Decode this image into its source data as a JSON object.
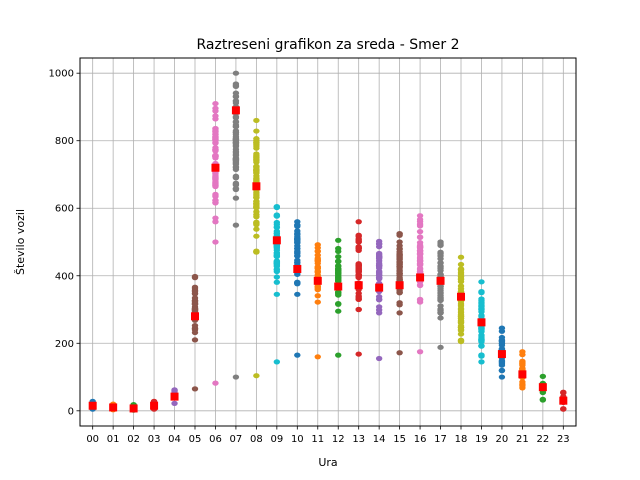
{
  "chart_data": {
    "type": "scatter",
    "title": "Raztreseni grafikon za sreda - Smer 2",
    "xlabel": "Ura",
    "ylabel": "Število vozil",
    "ylim": [
      -45,
      1045
    ],
    "yticks": [
      0,
      200,
      400,
      600,
      800,
      1000
    ],
    "grid": true,
    "mean_marker_color": "#ff0000",
    "categories": [
      "00",
      "01",
      "02",
      "03",
      "04",
      "05",
      "06",
      "07",
      "08",
      "09",
      "10",
      "11",
      "12",
      "13",
      "14",
      "15",
      "16",
      "17",
      "18",
      "19",
      "20",
      "21",
      "22",
      "23"
    ],
    "series": [
      {
        "category": "00",
        "color": "#1f77b4",
        "min": 5,
        "max": 28,
        "outliers": [],
        "mean": 15
      },
      {
        "category": "01",
        "color": "#ff7f0e",
        "min": 3,
        "max": 20,
        "outliers": [],
        "mean": 10
      },
      {
        "category": "02",
        "color": "#2ca02c",
        "min": 2,
        "max": 18,
        "outliers": [],
        "mean": 7
      },
      {
        "category": "03",
        "color": "#d62728",
        "min": 5,
        "max": 28,
        "outliers": [],
        "mean": 15
      },
      {
        "category": "04",
        "color": "#9467bd",
        "min": 22,
        "max": 62,
        "outliers": [],
        "mean": 42
      },
      {
        "category": "05",
        "color": "#8c564b",
        "min": 210,
        "max": 398,
        "outliers": [
          65
        ],
        "mean": 280
      },
      {
        "category": "06",
        "color": "#e377c2",
        "min": 560,
        "max": 910,
        "outliers": [
          82,
          500
        ],
        "mean": 720
      },
      {
        "category": "07",
        "color": "#7f7f7f",
        "min": 630,
        "max": 1000,
        "outliers": [
          100,
          550
        ],
        "mean": 890
      },
      {
        "category": "08",
        "color": "#bcbd22",
        "min": 470,
        "max": 860,
        "outliers": [
          104
        ],
        "mean": 665
      },
      {
        "category": "09",
        "color": "#17becf",
        "min": 345,
        "max": 605,
        "outliers": [
          145
        ],
        "mean": 505
      },
      {
        "category": "10",
        "color": "#1f77b4",
        "min": 345,
        "max": 560,
        "outliers": [
          165
        ],
        "mean": 420
      },
      {
        "category": "11",
        "color": "#ff7f0e",
        "min": 322,
        "max": 492,
        "outliers": [
          160
        ],
        "mean": 385
      },
      {
        "category": "12",
        "color": "#2ca02c",
        "min": 295,
        "max": 505,
        "outliers": [
          165
        ],
        "mean": 368
      },
      {
        "category": "13",
        "color": "#d62728",
        "min": 300,
        "max": 520,
        "outliers": [
          168,
          560
        ],
        "mean": 372
      },
      {
        "category": "14",
        "color": "#9467bd",
        "min": 290,
        "max": 502,
        "outliers": [
          155
        ],
        "mean": 365
      },
      {
        "category": "15",
        "color": "#8c564b",
        "min": 290,
        "max": 525,
        "outliers": [
          172
        ],
        "mean": 372
      },
      {
        "category": "16",
        "color": "#e377c2",
        "min": 322,
        "max": 578,
        "outliers": [
          175
        ],
        "mean": 395
      },
      {
        "category": "17",
        "color": "#7f7f7f",
        "min": 275,
        "max": 500,
        "outliers": [
          188
        ],
        "mean": 385
      },
      {
        "category": "18",
        "color": "#bcbd22",
        "min": 205,
        "max": 455,
        "outliers": [],
        "mean": 338
      },
      {
        "category": "19",
        "color": "#17becf",
        "min": 145,
        "max": 382,
        "outliers": [],
        "mean": 262
      },
      {
        "category": "20",
        "color": "#1f77b4",
        "min": 100,
        "max": 245,
        "outliers": [],
        "mean": 168
      },
      {
        "category": "21",
        "color": "#ff7f0e",
        "min": 68,
        "max": 175,
        "outliers": [],
        "mean": 108
      },
      {
        "category": "22",
        "color": "#2ca02c",
        "min": 32,
        "max": 102,
        "outliers": [],
        "mean": 70
      },
      {
        "category": "23",
        "color": "#d62728",
        "min": 5,
        "max": 55,
        "outliers": [],
        "mean": 30
      }
    ]
  }
}
